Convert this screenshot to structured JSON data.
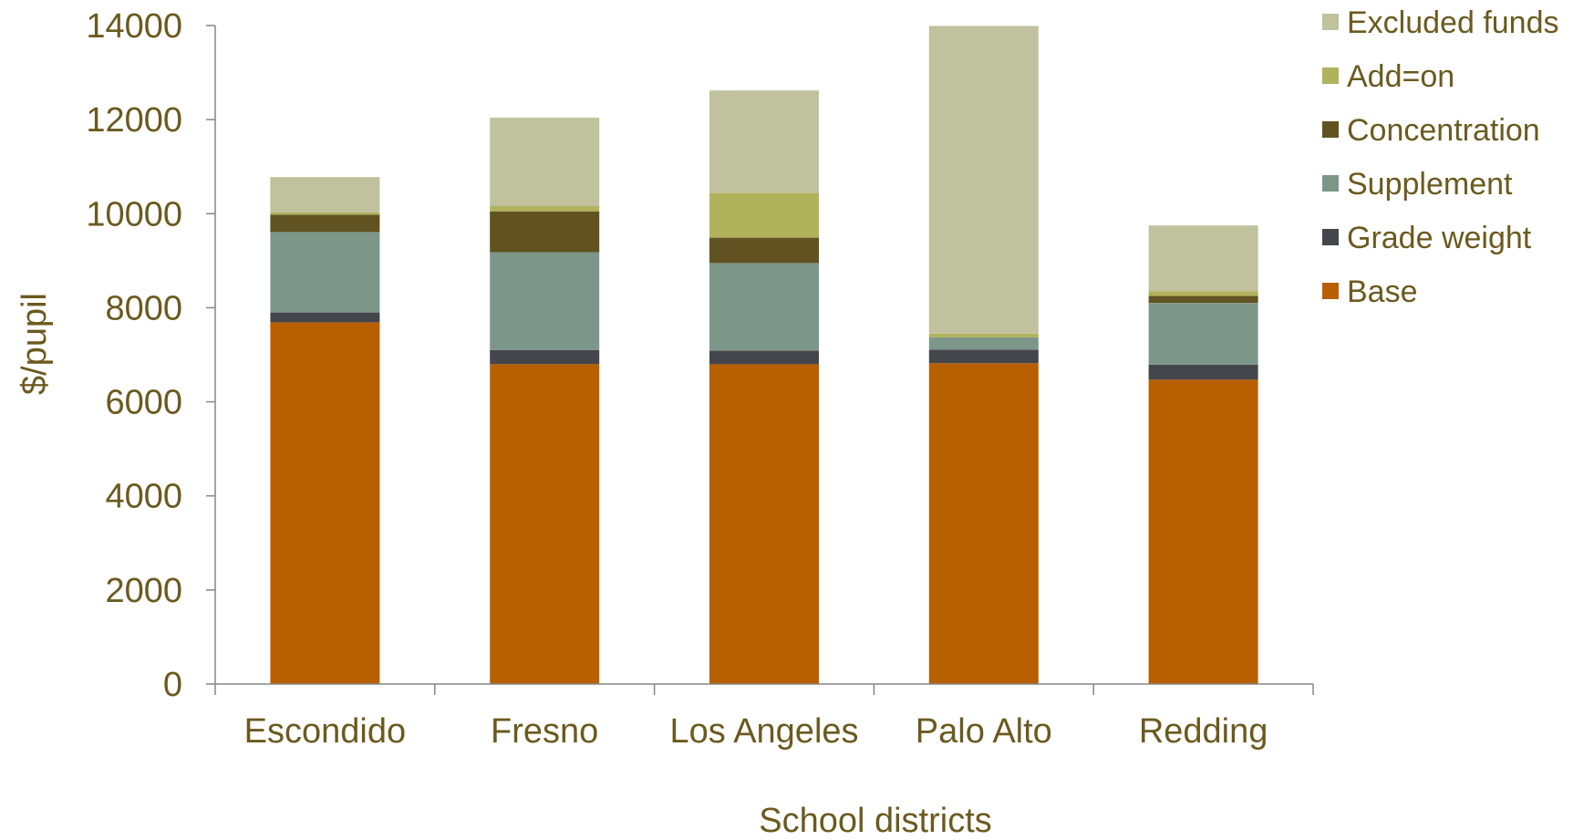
{
  "chart_data": {
    "type": "bar",
    "stacked": true,
    "title": "",
    "xlabel": "School districts",
    "ylabel": "$/pupil",
    "ylim": [
      0,
      14000
    ],
    "yticks": [
      0,
      2000,
      4000,
      6000,
      8000,
      10000,
      12000,
      14000
    ],
    "grid": false,
    "legend_position": "top-right",
    "categories": [
      "Escondido",
      "Fresno",
      "Los Angeles",
      "Palo Alto",
      "Redding"
    ],
    "series": [
      {
        "name": "Base",
        "color": "#b86000",
        "values": [
          7690,
          6800,
          6800,
          6820,
          6470
        ]
      },
      {
        "name": "Grade weight",
        "color": "#45464b",
        "values": [
          210,
          300,
          290,
          290,
          320
        ]
      },
      {
        "name": "Supplement",
        "color": "#7d968a",
        "values": [
          1710,
          2080,
          1860,
          260,
          1310
        ]
      },
      {
        "name": "Concentration",
        "color": "#615321",
        "values": [
          370,
          870,
          540,
          0,
          150
        ]
      },
      {
        "name": "Add=on",
        "color": "#b1b35c",
        "values": [
          50,
          110,
          950,
          80,
          100
        ]
      },
      {
        "name": "Excluded funds",
        "color": "#c0c19d",
        "values": [
          750,
          1880,
          2180,
          6540,
          1400
        ]
      }
    ]
  }
}
